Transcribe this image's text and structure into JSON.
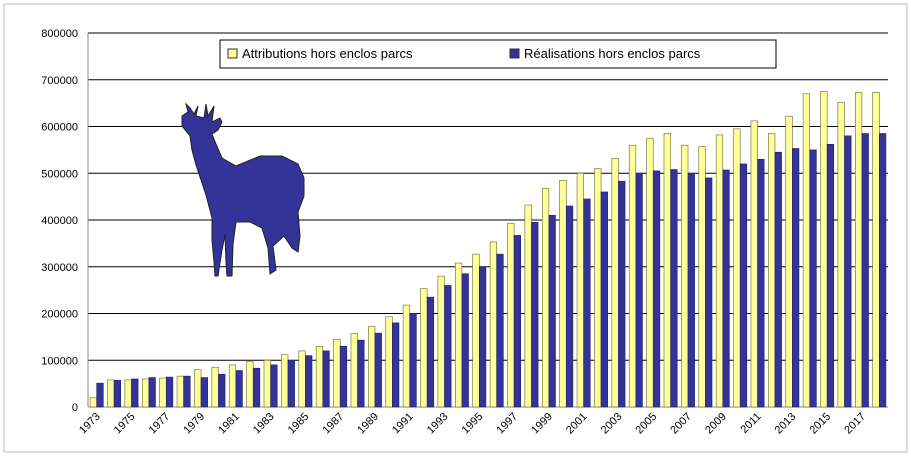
{
  "chart_data": {
    "type": "bar",
    "categories": [
      "1973",
      null,
      "1975",
      null,
      "1977",
      null,
      "1979",
      null,
      "1981",
      null,
      "1983",
      null,
      "1985",
      null,
      "1987",
      null,
      "1989",
      null,
      "1991",
      null,
      "1993",
      null,
      "1995",
      null,
      "1997",
      null,
      "1999",
      null,
      "2001",
      null,
      "2003",
      null,
      "2005",
      null,
      "2007",
      null,
      "2009",
      null,
      "2011",
      null,
      "2013",
      null,
      "2015",
      null,
      "2017",
      null
    ],
    "series": [
      {
        "name": "Attributions hors enclos parcs",
        "color": "#ffff99",
        "values": [
          20000,
          58000,
          58000,
          60000,
          62000,
          66000,
          80000,
          85000,
          90000,
          97000,
          100000,
          112000,
          120000,
          130000,
          145000,
          157000,
          172000,
          193000,
          218000,
          253000,
          280000,
          308000,
          327000,
          353000,
          393000,
          432000,
          468000,
          485000,
          500000,
          510000,
          532000,
          560000,
          575000,
          585000,
          560000,
          557000,
          582000,
          595000,
          612000,
          585000,
          622000,
          670000,
          675000,
          652000,
          673000,
          673000
        ]
      },
      {
        "name": "Réalisations hors enclos parcs",
        "color": "#333399",
        "values": [
          51000,
          57000,
          60000,
          63000,
          64000,
          66000,
          63000,
          70000,
          78000,
          83000,
          90000,
          100000,
          110000,
          120000,
          130000,
          143000,
          158000,
          180000,
          200000,
          235000,
          260000,
          285000,
          300000,
          327000,
          367000,
          395000,
          410000,
          430000,
          445000,
          460000,
          483000,
          500000,
          505000,
          508000,
          500000,
          490000,
          507000,
          520000,
          530000,
          545000,
          553000,
          550000,
          562000,
          580000,
          585000,
          585000
        ]
      }
    ],
    "ylim": [
      0,
      800000
    ],
    "yticks": [
      0,
      100000,
      200000,
      300000,
      400000,
      500000,
      600000,
      700000,
      800000
    ],
    "grid": true,
    "legend": "top"
  }
}
